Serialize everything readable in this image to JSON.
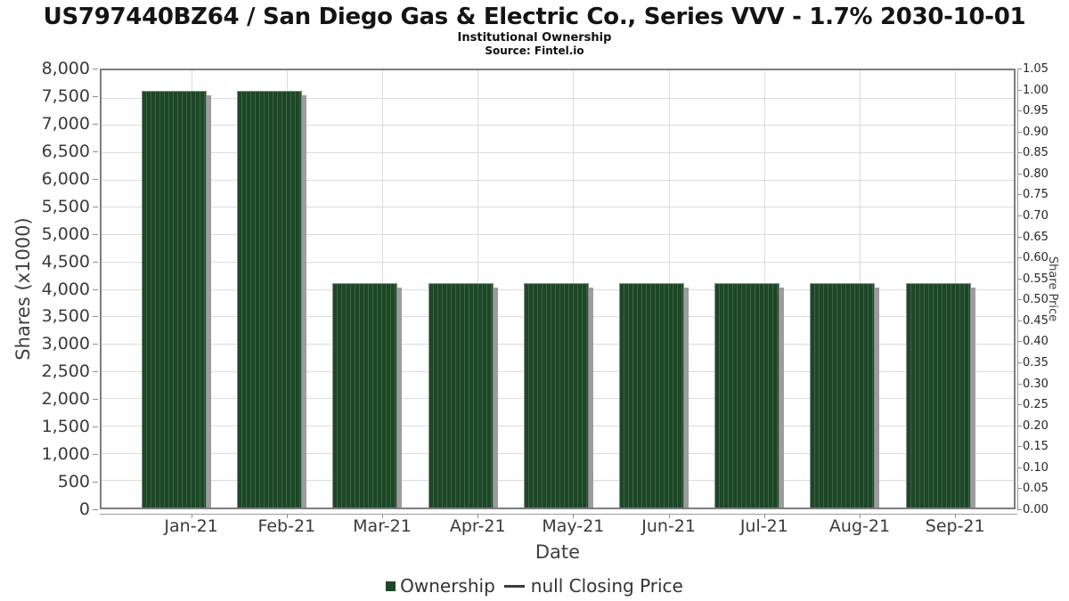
{
  "header": {
    "title": "US797440BZ64 / San Diego Gas & Electric Co., Series VVV - 1.7% 2030-10-01",
    "subtitle": "Institutional Ownership",
    "source": "Source: Fintel.io"
  },
  "chart_data": {
    "type": "bar",
    "title": "US797440BZ64 / San Diego Gas & Electric Co., Series VVV - 1.7% 2030-10-01",
    "subtitle": "Institutional Ownership",
    "source": "Source: Fintel.io",
    "categories": [
      "Jan-21",
      "Feb-21",
      "Mar-21",
      "Apr-21",
      "May-21",
      "Jun-21",
      "Jul-21",
      "Aug-21",
      "Sep-21"
    ],
    "series": [
      {
        "name": "Ownership",
        "values": [
          7620,
          7620,
          4110,
          4110,
          4110,
          4110,
          4110,
          4110,
          4110
        ]
      },
      {
        "name": "null Closing Price",
        "values": []
      }
    ],
    "xlabel": "Date",
    "ylabel": "Shares (x1000)",
    "y2label": "Share Price",
    "ylim": [
      0,
      8000
    ],
    "ytick_step": 500,
    "yticks": [
      "0",
      "500",
      "1,000",
      "1,500",
      "2,000",
      "2,500",
      "3,000",
      "3,500",
      "4,000",
      "4,500",
      "5,000",
      "5,500",
      "6,000",
      "6,500",
      "7,000",
      "7,500",
      "8,000"
    ],
    "y2lim": [
      0,
      1.05
    ],
    "y2tick_step": 0.05,
    "y2ticks": [
      "0.00",
      "0.05",
      "0.10",
      "0.15",
      "0.20",
      "0.25",
      "0.30",
      "0.35",
      "0.40",
      "0.45",
      "0.50",
      "0.55",
      "0.60",
      "0.65",
      "0.70",
      "0.75",
      "0.80",
      "0.85",
      "0.90",
      "0.95",
      "1.00",
      "1.05"
    ],
    "grid": true,
    "legend_position": "bottom",
    "bar_color": "#1d4727",
    "bar_stripe_color": "#3c6548",
    "bar_shadow_color": "#9c9c9c",
    "grid_color": "#dcdcdc"
  },
  "legend": {
    "items": [
      {
        "label": "Ownership",
        "swatch": "square",
        "color": "#1d4727"
      },
      {
        "label": "null Closing Price",
        "swatch": "dash",
        "color": "#3d3d3d"
      }
    ]
  }
}
